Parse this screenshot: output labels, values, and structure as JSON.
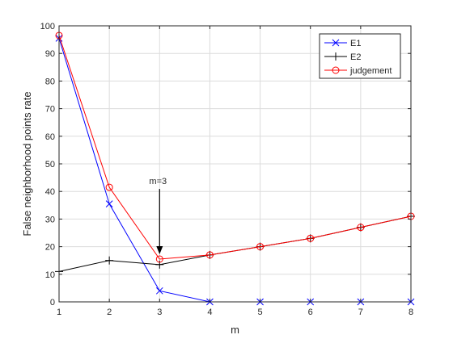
{
  "chart_data": {
    "type": "line",
    "xlabel": "m",
    "ylabel": "False neighborhood points rate",
    "xlim": [
      1,
      8
    ],
    "ylim": [
      0,
      100
    ],
    "xticks": [
      1,
      2,
      3,
      4,
      5,
      6,
      7,
      8
    ],
    "yticks": [
      0,
      10,
      20,
      30,
      40,
      50,
      60,
      70,
      80,
      90,
      100
    ],
    "grid": true,
    "legend_position": "top-right",
    "x": [
      1,
      2,
      3,
      4,
      5,
      6,
      7,
      8
    ],
    "series": [
      {
        "name": "E1",
        "values": [
          95.5,
          35.5,
          4,
          0,
          0,
          0,
          0,
          0
        ],
        "color": "#0000ff",
        "marker": "x"
      },
      {
        "name": "E2",
        "values": [
          11,
          15,
          13.5,
          17,
          20,
          23,
          27,
          31
        ],
        "color": "#000000",
        "marker": "+"
      },
      {
        "name": "judgement",
        "values": [
          96.5,
          41.5,
          15.5,
          17,
          20,
          23,
          27,
          31
        ],
        "color": "#ff0000",
        "marker": "o"
      }
    ],
    "annotations": [
      {
        "text": "m=3",
        "x": 3,
        "y": 15.5,
        "type": "arrow"
      }
    ]
  }
}
